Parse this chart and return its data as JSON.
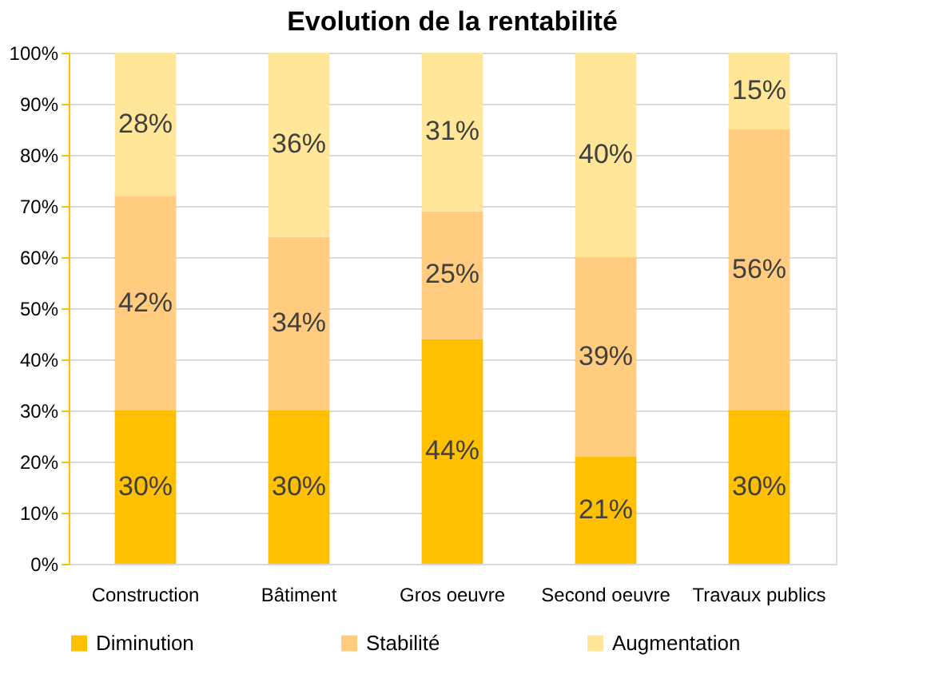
{
  "chart_data": {
    "type": "bar",
    "stacked": true,
    "title": "Evolution de la rentabilité",
    "categories": [
      "Construction",
      "Bâtiment",
      "Gros oeuvre",
      "Second oeuvre",
      "Travaux publics"
    ],
    "series": [
      {
        "name": "Diminution",
        "color": "#ffc000",
        "values": [
          30,
          30,
          44,
          21,
          30
        ]
      },
      {
        "name": "Stabilité",
        "color": "#ffcc80",
        "values": [
          42,
          34,
          25,
          39,
          55
        ]
      },
      {
        "name": "Augmentation",
        "color": "#ffe699",
        "values": [
          28,
          36,
          31,
          40,
          15
        ]
      }
    ],
    "ylim": [
      0,
      100
    ],
    "yticks": [
      {
        "value": 0,
        "label": "0%"
      },
      {
        "value": 10,
        "label": "10%"
      },
      {
        "value": 20,
        "label": "20%"
      },
      {
        "value": 30,
        "label": "30%"
      },
      {
        "value": 40,
        "label": "40%"
      },
      {
        "value": 50,
        "label": "50%"
      },
      {
        "value": 60,
        "label": "60%"
      },
      {
        "value": 70,
        "label": "70%"
      },
      {
        "value": 80,
        "label": "80%"
      },
      {
        "value": 90,
        "label": "90%"
      },
      {
        "value": 100,
        "label": "100%"
      }
    ],
    "value_labels": [
      [
        "30%",
        "30%",
        "44%",
        "21%",
        "30%"
      ],
      [
        "42%",
        "34%",
        "25%",
        "39%",
        "56%"
      ],
      [
        "28%",
        "36%",
        "31%",
        "40%",
        "15%"
      ]
    ],
    "grid": "y",
    "legend": "bottom"
  }
}
